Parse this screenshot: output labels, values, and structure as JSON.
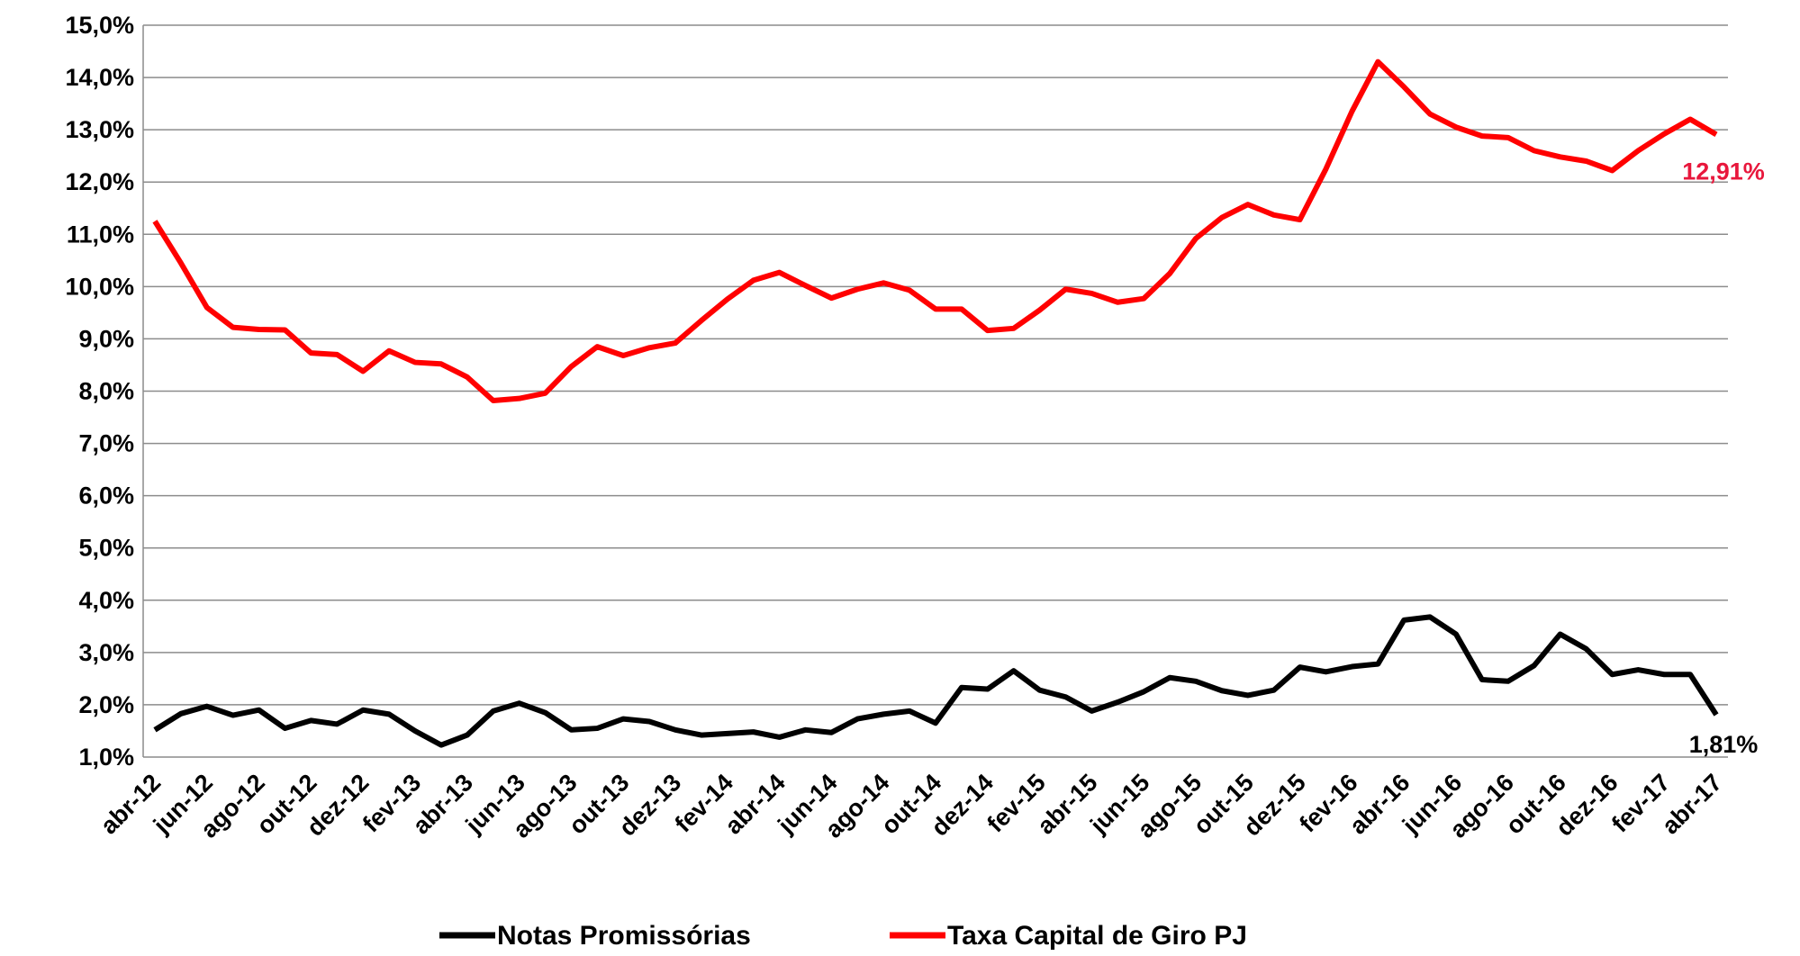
{
  "chart_data": {
    "type": "line",
    "categories": [
      "abr-12",
      null,
      "jun-12",
      null,
      "ago-12",
      null,
      "out-12",
      null,
      "dez-12",
      null,
      "fev-13",
      null,
      "abr-13",
      null,
      "jun-13",
      null,
      "ago-13",
      null,
      "out-13",
      null,
      "dez-13",
      null,
      "fev-14",
      null,
      "abr-14",
      null,
      "jun-14",
      null,
      "ago-14",
      null,
      "out-14",
      null,
      "dez-14",
      null,
      "fev-15",
      null,
      "abr-15",
      null,
      "jun-15",
      null,
      "ago-15",
      null,
      "out-15",
      null,
      "dez-15",
      null,
      "fev-16",
      null,
      "abr-16",
      null,
      "jun-16",
      null,
      "ago-16",
      null,
      "out-16",
      null,
      "dez-16",
      null,
      "fev-17",
      null,
      "abr-17"
    ],
    "series": [
      {
        "name": "Notas Promissórias",
        "color": "#000000",
        "values": [
          1.52,
          1.83,
          1.97,
          1.8,
          1.9,
          1.55,
          1.7,
          1.63,
          1.9,
          1.82,
          1.5,
          1.23,
          1.42,
          1.88,
          2.03,
          1.85,
          1.52,
          1.55,
          1.73,
          1.68,
          1.52,
          1.42,
          1.45,
          1.48,
          1.38,
          1.52,
          1.47,
          1.73,
          1.82,
          1.88,
          1.65,
          2.33,
          2.3,
          2.65,
          2.28,
          2.15,
          1.88,
          2.05,
          2.25,
          2.52,
          2.45,
          2.27,
          2.18,
          2.28,
          2.72,
          2.63,
          2.73,
          2.78,
          3.62,
          3.68,
          3.35,
          2.48,
          2.45,
          2.75,
          3.35,
          3.07,
          2.58,
          2.67,
          2.58,
          2.58,
          1.81
        ],
        "value_labels": [
          null,
          null,
          null,
          null,
          null,
          null,
          null,
          null,
          null,
          null,
          null,
          null,
          null,
          null,
          null,
          null,
          null,
          null,
          null,
          null,
          null,
          null,
          null,
          null,
          null,
          null,
          null,
          null,
          null,
          null,
          null,
          null,
          null,
          null,
          null,
          null,
          null,
          null,
          null,
          null,
          null,
          null,
          null,
          null,
          null,
          null,
          null,
          null,
          null,
          null,
          null,
          null,
          null,
          null,
          null,
          null,
          null,
          null,
          null,
          null,
          "1,81%"
        ],
        "label_color": "#000000"
      },
      {
        "name": "Taxa Capital de Giro PJ",
        "color": "#ff0000",
        "values": [
          11.25,
          10.45,
          9.6,
          9.22,
          9.18,
          9.17,
          8.73,
          8.7,
          8.38,
          8.77,
          8.55,
          8.52,
          8.27,
          7.82,
          7.86,
          7.96,
          8.47,
          8.85,
          8.68,
          8.83,
          8.92,
          9.35,
          9.76,
          10.12,
          10.27,
          10.02,
          9.78,
          9.95,
          10.07,
          9.93,
          9.57,
          9.57,
          9.16,
          9.2,
          9.55,
          9.95,
          9.87,
          9.7,
          9.77,
          10.25,
          10.92,
          11.32,
          11.57,
          11.37,
          11.28,
          12.25,
          13.35,
          14.3,
          13.82,
          13.3,
          13.05,
          12.88,
          12.85,
          12.6,
          12.48,
          12.4,
          12.22,
          12.6,
          12.92,
          13.2,
          12.91
        ],
        "value_labels": [
          null,
          null,
          null,
          null,
          null,
          null,
          null,
          null,
          null,
          null,
          null,
          null,
          null,
          null,
          null,
          null,
          null,
          null,
          null,
          null,
          null,
          null,
          null,
          null,
          null,
          null,
          null,
          null,
          null,
          null,
          null,
          null,
          null,
          null,
          null,
          null,
          null,
          null,
          null,
          null,
          null,
          null,
          null,
          null,
          null,
          null,
          null,
          null,
          null,
          null,
          null,
          null,
          null,
          null,
          null,
          null,
          null,
          null,
          null,
          null,
          "12,91%"
        ],
        "label_color": "#e8173c"
      }
    ],
    "ylim": [
      1,
      15
    ],
    "yticks": [
      {
        "value": 1,
        "label": "1,0%"
      },
      {
        "value": 2,
        "label": "2,0%"
      },
      {
        "value": 3,
        "label": "3,0%"
      },
      {
        "value": 4,
        "label": "4,0%"
      },
      {
        "value": 5,
        "label": "5,0%"
      },
      {
        "value": 6,
        "label": "6,0%"
      },
      {
        "value": 7,
        "label": "7,0%"
      },
      {
        "value": 8,
        "label": "8,0%"
      },
      {
        "value": 9,
        "label": "9,0%"
      },
      {
        "value": 10,
        "label": "10,0%"
      },
      {
        "value": 11,
        "label": "11,0%"
      },
      {
        "value": 12,
        "label": "12,0%"
      },
      {
        "value": 13,
        "label": "13,0%"
      },
      {
        "value": 14,
        "label": "14,0%"
      },
      {
        "value": 15,
        "label": "15,0%"
      }
    ],
    "grid": true,
    "legend": "bottom"
  }
}
